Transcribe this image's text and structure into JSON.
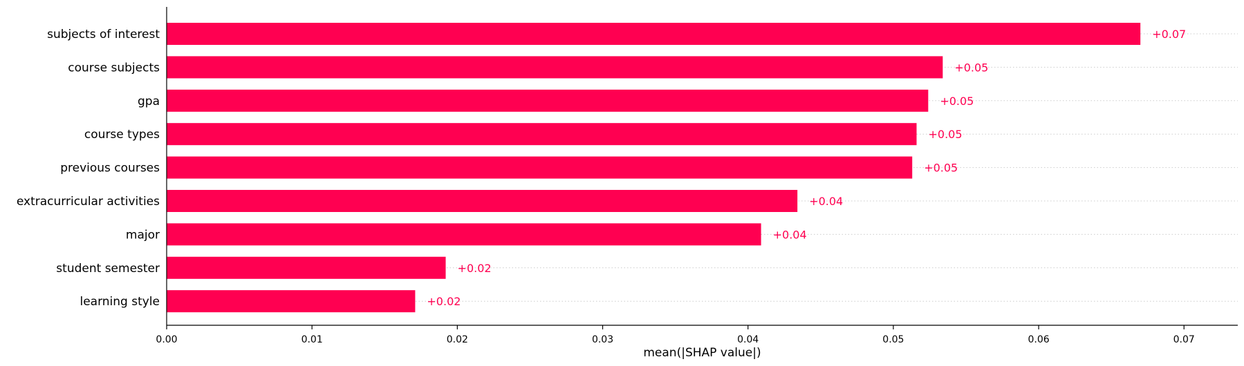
{
  "chart_data": {
    "type": "bar",
    "orientation": "horizontal",
    "categories": [
      "subjects of interest",
      "course subjects",
      "gpa",
      "course types",
      "previous courses",
      "extracurricular activities",
      "major",
      "student semester",
      "learning style"
    ],
    "values": [
      0.067,
      0.0534,
      0.0524,
      0.0516,
      0.0513,
      0.0434,
      0.0409,
      0.0192,
      0.0171
    ],
    "value_labels": [
      "+0.07",
      "+0.05",
      "+0.05",
      "+0.05",
      "+0.05",
      "+0.04",
      "+0.04",
      "+0.02",
      "+0.02"
    ],
    "title": "",
    "xlabel": "mean(|SHAP value|)",
    "ylabel": "",
    "xlim": [
      0,
      0.0737
    ],
    "xticks": [
      0.0,
      0.01,
      0.02,
      0.03,
      0.04,
      0.05,
      0.06,
      0.07
    ],
    "xtick_labels": [
      "0.00",
      "0.01",
      "0.02",
      "0.03",
      "0.04",
      "0.05",
      "0.06",
      "0.07"
    ],
    "bar_color": "#ff0051",
    "grid": "dotted horizontal row guides",
    "legend": "none"
  }
}
